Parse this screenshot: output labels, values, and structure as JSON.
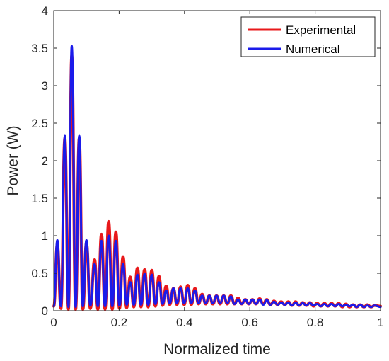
{
  "chart_data": {
    "type": "line",
    "title": "",
    "xlabel": "Normalized time",
    "ylabel": "Power (W)",
    "xlim": [
      0,
      1
    ],
    "ylim": [
      0,
      4
    ],
    "xticks": [
      0,
      0.2,
      0.4,
      0.6,
      0.8,
      1
    ],
    "xtick_labels": [
      "0",
      "0.2",
      "0.4",
      "0.6",
      "0.8",
      "1"
    ],
    "yticks": [
      0,
      0.5,
      1,
      1.5,
      2,
      2.5,
      3,
      3.5,
      4
    ],
    "ytick_labels": [
      "0",
      "0.5",
      "1",
      "1.5",
      "2",
      "2.5",
      "3",
      "3.5",
      "4"
    ],
    "grid": false,
    "legend_position": "top-right",
    "series": [
      {
        "name": "Experimental",
        "color": "#e8191b",
        "peaks": [
          [
            0.011,
            0.88
          ],
          [
            0.034,
            2.3
          ],
          [
            0.055,
            3.4
          ],
          [
            0.078,
            2.3
          ],
          [
            0.1,
            0.9
          ],
          [
            0.125,
            0.68
          ],
          [
            0.146,
            1.02
          ],
          [
            0.168,
            1.19
          ],
          [
            0.19,
            1.05
          ],
          [
            0.212,
            0.72
          ],
          [
            0.234,
            0.45
          ],
          [
            0.256,
            0.57
          ],
          [
            0.278,
            0.55
          ],
          [
            0.3,
            0.54
          ],
          [
            0.322,
            0.46
          ],
          [
            0.344,
            0.33
          ],
          [
            0.366,
            0.3
          ],
          [
            0.388,
            0.32
          ],
          [
            0.41,
            0.34
          ],
          [
            0.432,
            0.3
          ],
          [
            0.454,
            0.22
          ],
          [
            0.476,
            0.2
          ],
          [
            0.498,
            0.2
          ],
          [
            0.52,
            0.2
          ],
          [
            0.542,
            0.2
          ],
          [
            0.564,
            0.17
          ],
          [
            0.586,
            0.15
          ],
          [
            0.608,
            0.15
          ],
          [
            0.63,
            0.16
          ],
          [
            0.652,
            0.15
          ],
          [
            0.674,
            0.13
          ],
          [
            0.696,
            0.12
          ],
          [
            0.718,
            0.12
          ],
          [
            0.74,
            0.12
          ],
          [
            0.762,
            0.11
          ],
          [
            0.784,
            0.11
          ],
          [
            0.806,
            0.1
          ],
          [
            0.828,
            0.1
          ],
          [
            0.85,
            0.1
          ],
          [
            0.872,
            0.1
          ],
          [
            0.894,
            0.09
          ],
          [
            0.916,
            0.08
          ],
          [
            0.938,
            0.08
          ],
          [
            0.96,
            0.08
          ],
          [
            0.982,
            0.07
          ]
        ],
        "valleys": [
          [
            0.0,
            0.06
          ],
          [
            0.022,
            0.03
          ],
          [
            0.045,
            0.02
          ],
          [
            0.067,
            0.02
          ],
          [
            0.089,
            0.02
          ],
          [
            0.112,
            0.03
          ],
          [
            0.135,
            0.02
          ],
          [
            0.157,
            0.02
          ],
          [
            0.179,
            0.02
          ],
          [
            0.201,
            0.03
          ],
          [
            0.223,
            0.04
          ],
          [
            0.245,
            0.05
          ],
          [
            0.267,
            0.05
          ],
          [
            0.289,
            0.05
          ],
          [
            0.311,
            0.06
          ],
          [
            0.333,
            0.07
          ],
          [
            0.355,
            0.08
          ],
          [
            0.377,
            0.08
          ],
          [
            0.399,
            0.08
          ],
          [
            0.421,
            0.08
          ],
          [
            0.443,
            0.09
          ],
          [
            0.465,
            0.09
          ],
          [
            0.487,
            0.09
          ],
          [
            0.509,
            0.09
          ],
          [
            0.531,
            0.09
          ],
          [
            0.553,
            0.09
          ],
          [
            0.575,
            0.09
          ],
          [
            0.597,
            0.09
          ],
          [
            0.619,
            0.09
          ],
          [
            0.641,
            0.09
          ],
          [
            0.663,
            0.08
          ],
          [
            0.685,
            0.08
          ],
          [
            0.707,
            0.08
          ],
          [
            0.729,
            0.07
          ],
          [
            0.751,
            0.07
          ],
          [
            0.773,
            0.07
          ],
          [
            0.795,
            0.06
          ],
          [
            0.817,
            0.06
          ],
          [
            0.839,
            0.06
          ],
          [
            0.861,
            0.06
          ],
          [
            0.883,
            0.05
          ],
          [
            0.905,
            0.05
          ],
          [
            0.927,
            0.05
          ],
          [
            0.949,
            0.05
          ],
          [
            0.971,
            0.05
          ],
          [
            1.0,
            0.06
          ]
        ]
      },
      {
        "name": "Numerical",
        "color": "#1b1bea",
        "peaks": [
          [
            0.011,
            0.94
          ],
          [
            0.034,
            2.33
          ],
          [
            0.055,
            3.53
          ],
          [
            0.078,
            2.33
          ],
          [
            0.1,
            0.94
          ],
          [
            0.125,
            0.62
          ],
          [
            0.146,
            0.93
          ],
          [
            0.168,
            1.0
          ],
          [
            0.19,
            0.93
          ],
          [
            0.212,
            0.62
          ],
          [
            0.234,
            0.38
          ],
          [
            0.256,
            0.48
          ],
          [
            0.278,
            0.49
          ],
          [
            0.3,
            0.48
          ],
          [
            0.322,
            0.38
          ],
          [
            0.344,
            0.27
          ],
          [
            0.366,
            0.3
          ],
          [
            0.388,
            0.3
          ],
          [
            0.41,
            0.3
          ],
          [
            0.432,
            0.27
          ],
          [
            0.454,
            0.2
          ],
          [
            0.476,
            0.2
          ],
          [
            0.498,
            0.2
          ],
          [
            0.52,
            0.2
          ],
          [
            0.542,
            0.19
          ],
          [
            0.564,
            0.15
          ],
          [
            0.586,
            0.15
          ],
          [
            0.608,
            0.15
          ],
          [
            0.63,
            0.15
          ],
          [
            0.652,
            0.14
          ],
          [
            0.674,
            0.12
          ],
          [
            0.696,
            0.11
          ],
          [
            0.718,
            0.11
          ],
          [
            0.74,
            0.11
          ],
          [
            0.762,
            0.1
          ],
          [
            0.784,
            0.1
          ],
          [
            0.806,
            0.09
          ],
          [
            0.828,
            0.09
          ],
          [
            0.85,
            0.09
          ],
          [
            0.872,
            0.09
          ],
          [
            0.894,
            0.08
          ],
          [
            0.916,
            0.08
          ],
          [
            0.938,
            0.08
          ],
          [
            0.96,
            0.07
          ],
          [
            0.982,
            0.07
          ]
        ],
        "valleys": [
          [
            0.0,
            0.06
          ],
          [
            0.022,
            0.06
          ],
          [
            0.045,
            0.05
          ],
          [
            0.067,
            0.05
          ],
          [
            0.089,
            0.06
          ],
          [
            0.112,
            0.07
          ],
          [
            0.135,
            0.06
          ],
          [
            0.157,
            0.06
          ],
          [
            0.179,
            0.06
          ],
          [
            0.201,
            0.07
          ],
          [
            0.223,
            0.08
          ],
          [
            0.245,
            0.08
          ],
          [
            0.267,
            0.08
          ],
          [
            0.289,
            0.08
          ],
          [
            0.311,
            0.09
          ],
          [
            0.333,
            0.09
          ],
          [
            0.355,
            0.1
          ],
          [
            0.377,
            0.1
          ],
          [
            0.399,
            0.1
          ],
          [
            0.421,
            0.1
          ],
          [
            0.443,
            0.1
          ],
          [
            0.465,
            0.1
          ],
          [
            0.487,
            0.1
          ],
          [
            0.509,
            0.1
          ],
          [
            0.531,
            0.1
          ],
          [
            0.553,
            0.09
          ],
          [
            0.575,
            0.09
          ],
          [
            0.597,
            0.09
          ],
          [
            0.619,
            0.09
          ],
          [
            0.641,
            0.08
          ],
          [
            0.663,
            0.08
          ],
          [
            0.685,
            0.08
          ],
          [
            0.707,
            0.08
          ],
          [
            0.729,
            0.07
          ],
          [
            0.751,
            0.07
          ],
          [
            0.773,
            0.07
          ],
          [
            0.795,
            0.07
          ],
          [
            0.817,
            0.06
          ],
          [
            0.839,
            0.06
          ],
          [
            0.861,
            0.06
          ],
          [
            0.883,
            0.06
          ],
          [
            0.905,
            0.06
          ],
          [
            0.927,
            0.05
          ],
          [
            0.949,
            0.05
          ],
          [
            0.971,
            0.05
          ],
          [
            1.0,
            0.05
          ]
        ]
      }
    ]
  }
}
